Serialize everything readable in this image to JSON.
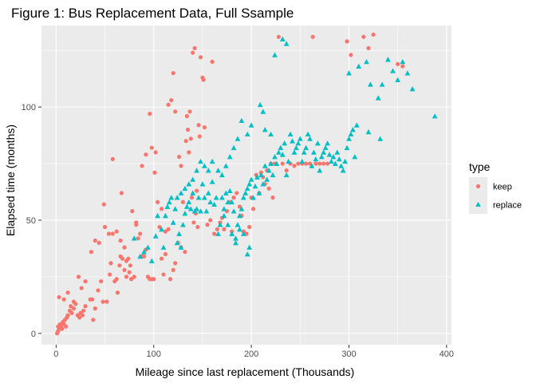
{
  "chart_data": {
    "type": "scatter",
    "title": "Figure 1: Bus Replacement Data, Full Ssample",
    "xlabel": "Mileage since last replacement (Thousands)",
    "ylabel": "Elapsed time (months)",
    "xlim": [
      -15,
      405
    ],
    "ylim": [
      -5,
      136
    ],
    "x_ticks": [
      0,
      100,
      200,
      300,
      400
    ],
    "y_ticks": [
      0,
      50,
      100
    ],
    "x_tick_labels": [
      "0",
      "100",
      "200",
      "300",
      "400"
    ],
    "y_tick_labels": [
      "0",
      "50",
      "100"
    ],
    "grid": true,
    "background": "#ebebeb",
    "legend": {
      "title": "type",
      "position": "right"
    },
    "series": [
      {
        "name": "keep",
        "color": "#f8766d",
        "marker": "circle",
        "points": [
          [
            1,
            0
          ],
          [
            2,
            1
          ],
          [
            3,
            2
          ],
          [
            2,
            3
          ],
          [
            4,
            4
          ],
          [
            5,
            3
          ],
          [
            6,
            2
          ],
          [
            7,
            5
          ],
          [
            8,
            4
          ],
          [
            9,
            6
          ],
          [
            10,
            3
          ],
          [
            11,
            7
          ],
          [
            12,
            8
          ],
          [
            14,
            10
          ],
          [
            15,
            12
          ],
          [
            16,
            9
          ],
          [
            18,
            11
          ],
          [
            20,
            13
          ],
          [
            22,
            8
          ],
          [
            24,
            7
          ],
          [
            25,
            9
          ],
          [
            27,
            8
          ],
          [
            28,
            10
          ],
          [
            30,
            12
          ],
          [
            3,
            16
          ],
          [
            8,
            15
          ],
          [
            12,
            18
          ],
          [
            18,
            14
          ],
          [
            23,
            25
          ],
          [
            26,
            20
          ],
          [
            30,
            23
          ],
          [
            35,
            15
          ],
          [
            36,
            36
          ],
          [
            37,
            15
          ],
          [
            38,
            6
          ],
          [
            40,
            11
          ],
          [
            43,
            19
          ],
          [
            46,
            23
          ],
          [
            48,
            14
          ],
          [
            49,
            57
          ],
          [
            52,
            14
          ],
          [
            55,
            26
          ],
          [
            56,
            31
          ],
          [
            58,
            77
          ],
          [
            60,
            23
          ],
          [
            62,
            24
          ],
          [
            63,
            18
          ],
          [
            65,
            30
          ],
          [
            66,
            34
          ],
          [
            67,
            62
          ],
          [
            70,
            38
          ],
          [
            72,
            25
          ],
          [
            75,
            27
          ],
          [
            77,
            24
          ],
          [
            80,
            25
          ],
          [
            82,
            49
          ],
          [
            84,
            42
          ],
          [
            86,
            44
          ],
          [
            88,
            34
          ],
          [
            90,
            34
          ],
          [
            92,
            37
          ],
          [
            94,
            25
          ],
          [
            96,
            24
          ],
          [
            98,
            24
          ],
          [
            100,
            24
          ],
          [
            101,
            71
          ],
          [
            102,
            80
          ],
          [
            104,
            58
          ],
          [
            106,
            47
          ],
          [
            108,
            33
          ],
          [
            110,
            26
          ],
          [
            112,
            45
          ],
          [
            115,
            46
          ],
          [
            117,
            24
          ],
          [
            120,
            28
          ],
          [
            122,
            31
          ],
          [
            125,
            40
          ],
          [
            128,
            38
          ],
          [
            130,
            58
          ],
          [
            132,
            36
          ],
          [
            133,
            85
          ],
          [
            134,
            96
          ],
          [
            135,
            90
          ],
          [
            136,
            80
          ],
          [
            137,
            98
          ],
          [
            138,
            86
          ],
          [
            139,
            60
          ],
          [
            140,
            124
          ],
          [
            141,
            49
          ],
          [
            142,
            126
          ],
          [
            143,
            53
          ],
          [
            144,
            63
          ],
          [
            145,
            47
          ],
          [
            146,
            92
          ],
          [
            147,
            87
          ],
          [
            148,
            122
          ],
          [
            150,
            113
          ],
          [
            151,
            112
          ],
          [
            152,
            91
          ],
          [
            155,
            48
          ],
          [
            158,
            50
          ],
          [
            160,
            120
          ],
          [
            162,
            44
          ],
          [
            165,
            46
          ],
          [
            168,
            49
          ],
          [
            170,
            51
          ],
          [
            172,
            46
          ],
          [
            175,
            54
          ],
          [
            178,
            58
          ],
          [
            180,
            45
          ],
          [
            182,
            60
          ],
          [
            185,
            62
          ],
          [
            188,
            56
          ],
          [
            190,
            52
          ],
          [
            192,
            45
          ],
          [
            195,
            44
          ],
          [
            198,
            47
          ],
          [
            200,
            60
          ],
          [
            202,
            55
          ],
          [
            205,
            70
          ],
          [
            208,
            62
          ],
          [
            210,
            71
          ],
          [
            212,
            69
          ],
          [
            214,
            66
          ],
          [
            216,
            72
          ],
          [
            218,
            64
          ],
          [
            220,
            75
          ],
          [
            222,
            60
          ],
          [
            224,
            75
          ],
          [
            228,
            131
          ],
          [
            232,
            75
          ],
          [
            236,
            72
          ],
          [
            240,
            75
          ],
          [
            244,
            74
          ],
          [
            248,
            75
          ],
          [
            252,
            75
          ],
          [
            256,
            75
          ],
          [
            260,
            75
          ],
          [
            263,
            131
          ],
          [
            266,
            75
          ],
          [
            270,
            75
          ],
          [
            274,
            75
          ],
          [
            278,
            75
          ],
          [
            298,
            129
          ],
          [
            302,
            123
          ],
          [
            315,
            131
          ],
          [
            320,
            126
          ],
          [
            325,
            132
          ],
          [
            350,
            119
          ],
          [
            355,
            118
          ],
          [
            120,
            115
          ],
          [
            115,
            101
          ],
          [
            118,
            103
          ],
          [
            122,
            98
          ],
          [
            126,
            78
          ],
          [
            128,
            74
          ],
          [
            96,
            97
          ],
          [
            98,
            82
          ],
          [
            92,
            79
          ],
          [
            88,
            74
          ],
          [
            78,
            54
          ],
          [
            82,
            48
          ],
          [
            108,
            55
          ],
          [
            112,
            35
          ],
          [
            40,
            41
          ],
          [
            44,
            40
          ],
          [
            50,
            47
          ],
          [
            54,
            44
          ],
          [
            58,
            44
          ],
          [
            62,
            45
          ],
          [
            66,
            41
          ],
          [
            68,
            33
          ],
          [
            70,
            28
          ],
          [
            72,
            32
          ],
          [
            74,
            33
          ],
          [
            76,
            30
          ]
        ]
      },
      {
        "name": "replace",
        "color": "#00bfc4",
        "marker": "triangle",
        "points": [
          [
            80,
            42
          ],
          [
            86,
            34
          ],
          [
            90,
            36
          ],
          [
            94,
            38
          ],
          [
            98,
            32
          ],
          [
            102,
            43
          ],
          [
            104,
            52
          ],
          [
            108,
            46
          ],
          [
            110,
            38
          ],
          [
            112,
            52
          ],
          [
            114,
            56
          ],
          [
            116,
            58
          ],
          [
            118,
            60
          ],
          [
            120,
            49
          ],
          [
            122,
            55
          ],
          [
            124,
            40
          ],
          [
            126,
            44
          ],
          [
            128,
            38
          ],
          [
            130,
            48
          ],
          [
            132,
            53
          ],
          [
            134,
            56
          ],
          [
            136,
            58
          ],
          [
            138,
            55
          ],
          [
            140,
            62
          ],
          [
            142,
            54
          ],
          [
            144,
            55
          ],
          [
            146,
            60
          ],
          [
            148,
            54
          ],
          [
            150,
            66
          ],
          [
            152,
            60
          ],
          [
            154,
            54
          ],
          [
            156,
            62
          ],
          [
            158,
            58
          ],
          [
            160,
            67
          ],
          [
            162,
            57
          ],
          [
            164,
            60
          ],
          [
            166,
            44
          ],
          [
            168,
            48
          ],
          [
            170,
            60
          ],
          [
            172,
            55
          ],
          [
            174,
            62
          ],
          [
            176,
            58
          ],
          [
            178,
            63
          ],
          [
            180,
            58
          ],
          [
            182,
            54
          ],
          [
            184,
            42
          ],
          [
            186,
            48
          ],
          [
            188,
            52
          ],
          [
            190,
            55
          ],
          [
            192,
            60
          ],
          [
            194,
            62
          ],
          [
            196,
            64
          ],
          [
            198,
            66
          ],
          [
            200,
            68
          ],
          [
            202,
            60
          ],
          [
            204,
            65
          ],
          [
            206,
            69
          ],
          [
            208,
            62
          ],
          [
            210,
            70
          ],
          [
            212,
            66
          ],
          [
            214,
            74
          ],
          [
            216,
            68
          ],
          [
            218,
            72
          ],
          [
            220,
            75
          ],
          [
            222,
            70
          ],
          [
            224,
            78
          ],
          [
            226,
            75
          ],
          [
            228,
            80
          ],
          [
            230,
            82
          ],
          [
            232,
            79
          ],
          [
            234,
            84
          ],
          [
            236,
            70
          ],
          [
            238,
            76
          ],
          [
            240,
            88
          ],
          [
            242,
            85
          ],
          [
            244,
            80
          ],
          [
            246,
            82
          ],
          [
            248,
            84
          ],
          [
            250,
            86
          ],
          [
            252,
            76
          ],
          [
            254,
            80
          ],
          [
            256,
            82
          ],
          [
            258,
            88
          ],
          [
            260,
            86
          ],
          [
            262,
            74
          ],
          [
            264,
            80
          ],
          [
            266,
            77
          ],
          [
            268,
            84
          ],
          [
            270,
            72
          ],
          [
            272,
            78
          ],
          [
            274,
            80
          ],
          [
            276,
            82
          ],
          [
            278,
            84
          ],
          [
            280,
            79
          ],
          [
            282,
            76
          ],
          [
            284,
            78
          ],
          [
            286,
            75
          ],
          [
            288,
            80
          ],
          [
            290,
            77
          ],
          [
            292,
            74
          ],
          [
            294,
            72
          ],
          [
            296,
            76
          ],
          [
            298,
            82
          ],
          [
            300,
            86
          ],
          [
            302,
            88
          ],
          [
            304,
            90
          ],
          [
            306,
            78
          ],
          [
            308,
            92
          ],
          [
            320,
            89
          ],
          [
            332,
            86
          ],
          [
            345,
            116
          ],
          [
            350,
            112
          ],
          [
            355,
            120
          ],
          [
            360,
            115
          ],
          [
            365,
            108
          ],
          [
            388,
            96
          ],
          [
            224,
            123
          ],
          [
            232,
            130
          ],
          [
            236,
            128
          ],
          [
            300,
            115
          ],
          [
            310,
            118
          ],
          [
            318,
            120
          ],
          [
            322,
            110
          ],
          [
            330,
            104
          ],
          [
            334,
            110
          ],
          [
            340,
            121
          ],
          [
            209,
            101
          ],
          [
            212,
            98
          ],
          [
            214,
            90
          ],
          [
            220,
            88
          ],
          [
            196,
            88
          ],
          [
            200,
            92
          ],
          [
            190,
            94
          ],
          [
            186,
            86
          ],
          [
            182,
            82
          ],
          [
            178,
            78
          ],
          [
            174,
            74
          ],
          [
            170,
            70
          ],
          [
            166,
            72
          ],
          [
            160,
            76
          ],
          [
            156,
            72
          ],
          [
            152,
            74
          ],
          [
            148,
            76
          ],
          [
            144,
            72
          ],
          [
            140,
            68
          ],
          [
            136,
            66
          ],
          [
            132,
            64
          ],
          [
            128,
            62
          ],
          [
            124,
            60
          ],
          [
            196,
            35
          ],
          [
            198,
            38
          ],
          [
            192,
            44
          ],
          [
            188,
            46
          ],
          [
            184,
            40
          ],
          [
            180,
            44
          ],
          [
            176,
            48
          ],
          [
            172,
            52
          ]
        ]
      }
    ]
  }
}
